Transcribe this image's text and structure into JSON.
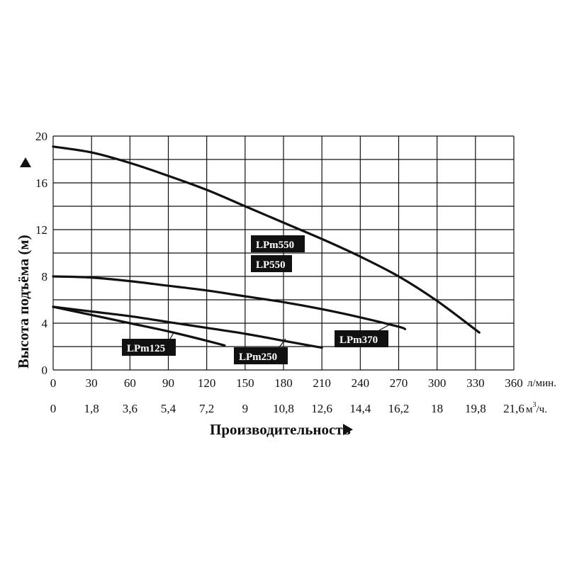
{
  "chart_data": {
    "type": "line",
    "ylabel": "Высота подъёма (м)",
    "xlabel": "Производительность",
    "ylim": [
      0,
      20
    ],
    "xlim": [
      0,
      360
    ],
    "grid": true,
    "y_ticks": [
      "0",
      "4",
      "8",
      "12",
      "16",
      "20"
    ],
    "x_ticks_lmin": [
      "0",
      "30",
      "60",
      "90",
      "120",
      "150",
      "180",
      "210",
      "240",
      "270",
      "300",
      "330",
      "360"
    ],
    "x_ticks_m3h": [
      "0",
      "1,8",
      "3,6",
      "5,4",
      "7,2",
      "9",
      "10,8",
      "12,6",
      "14,4",
      "16,2",
      "18",
      "19,8",
      "21,6"
    ],
    "x_unit_lmin": "л/мин.",
    "x_unit_m3h_base": "м",
    "x_unit_m3h_sup": "3",
    "x_unit_m3h_tail": "/ч.",
    "series": [
      {
        "name": "LPm550",
        "name2": "LP550",
        "x": [
          0,
          30,
          60,
          90,
          120,
          150,
          180,
          210,
          240,
          270,
          300,
          333
        ],
        "y": [
          19.1,
          18.6,
          17.7,
          16.6,
          15.4,
          14.0,
          12.6,
          11.2,
          9.7,
          8.0,
          5.9,
          3.2
        ]
      },
      {
        "name": "LPm370",
        "x": [
          0,
          30,
          60,
          90,
          120,
          150,
          180,
          210,
          240,
          270,
          275
        ],
        "y": [
          8.0,
          7.9,
          7.6,
          7.2,
          6.8,
          6.3,
          5.8,
          5.2,
          4.5,
          3.7,
          3.5
        ]
      },
      {
        "name": "LPm250",
        "x": [
          0,
          30,
          60,
          90,
          120,
          150,
          180,
          210
        ],
        "y": [
          5.4,
          5.0,
          4.6,
          4.1,
          3.6,
          3.1,
          2.5,
          1.9
        ]
      },
      {
        "name": "LPm125",
        "x": [
          0,
          30,
          60,
          90,
          120,
          134
        ],
        "y": [
          5.4,
          4.7,
          4.0,
          3.3,
          2.5,
          2.1
        ]
      }
    ]
  }
}
